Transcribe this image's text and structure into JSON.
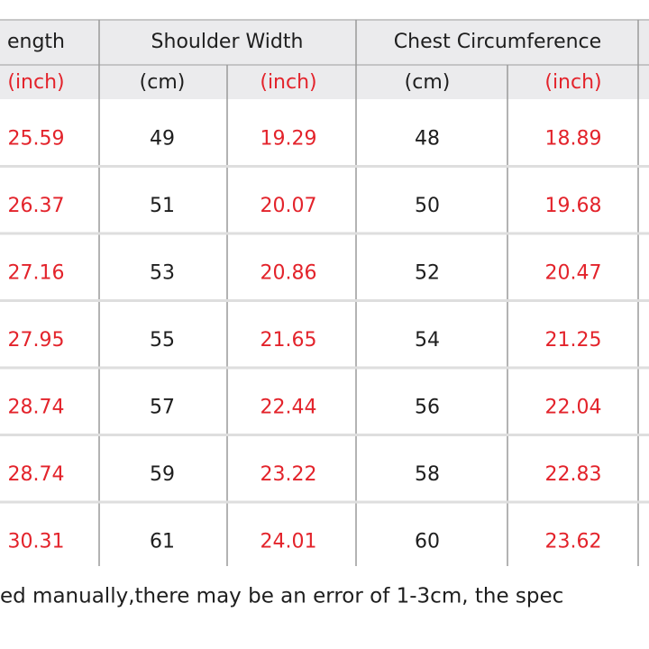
{
  "table": {
    "header_groups": [
      "ength",
      "Shoulder Width",
      "Chest Circumference"
    ],
    "unit_headers": [
      "(inch)",
      "(cm)",
      "(inch)",
      "(cm)",
      "(inch)"
    ],
    "rows": [
      [
        25.59,
        49,
        19.29,
        48,
        18.89
      ],
      [
        26.37,
        51,
        20.07,
        50,
        19.68
      ],
      [
        27.16,
        53,
        20.86,
        52,
        20.47
      ],
      [
        27.95,
        55,
        21.65,
        54,
        21.25
      ],
      [
        28.74,
        57,
        22.44,
        56,
        22.04
      ],
      [
        28.74,
        59,
        23.22,
        58,
        22.83
      ],
      [
        30.31,
        61,
        24.01,
        60,
        23.62
      ]
    ]
  },
  "note": "ed manually,there may be an error of 1-3cm, the spec"
}
